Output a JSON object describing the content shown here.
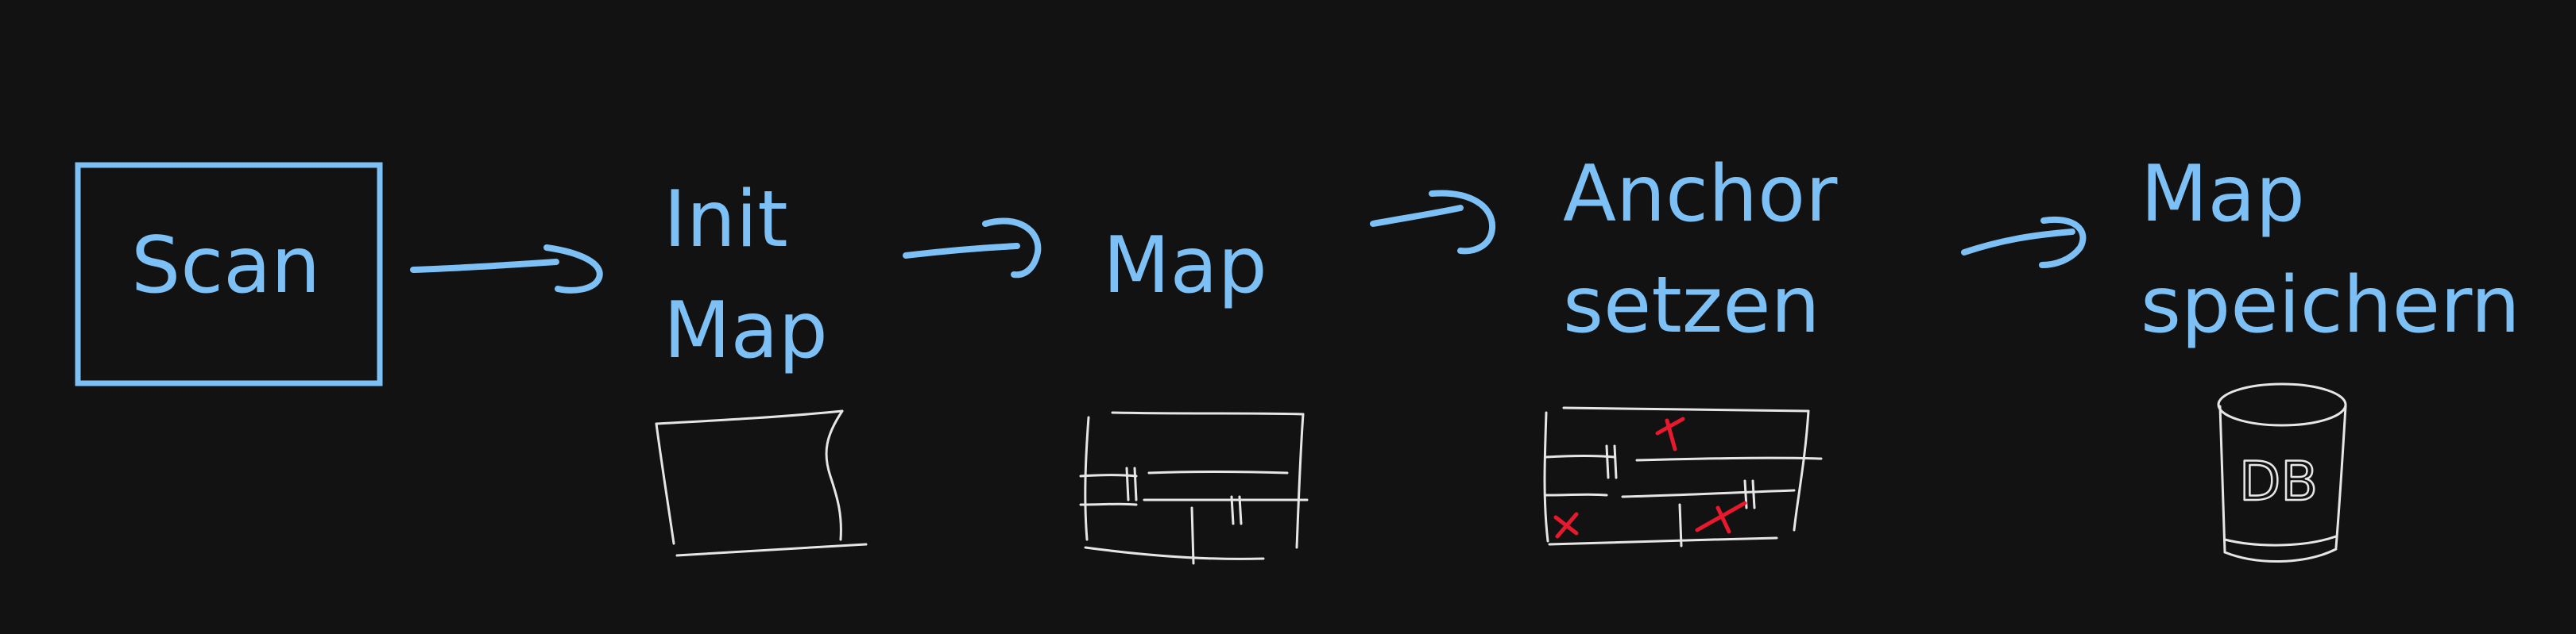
{
  "colors": {
    "background": "#121212",
    "ink_blue": "#7cc0f5",
    "sketch_white": "#e6e6e6",
    "mark_red": "#e8192c"
  },
  "steps": [
    {
      "lines": [
        "Scan"
      ],
      "boxed": true
    },
    {
      "lines": [
        "Init",
        "Map"
      ],
      "boxed": false
    },
    {
      "lines": [
        "Map"
      ],
      "boxed": false
    },
    {
      "lines": [
        "Anchor",
        "setzen"
      ],
      "boxed": false
    },
    {
      "lines": [
        "Map",
        "speichern"
      ],
      "boxed": false
    }
  ],
  "db_label": "DB"
}
